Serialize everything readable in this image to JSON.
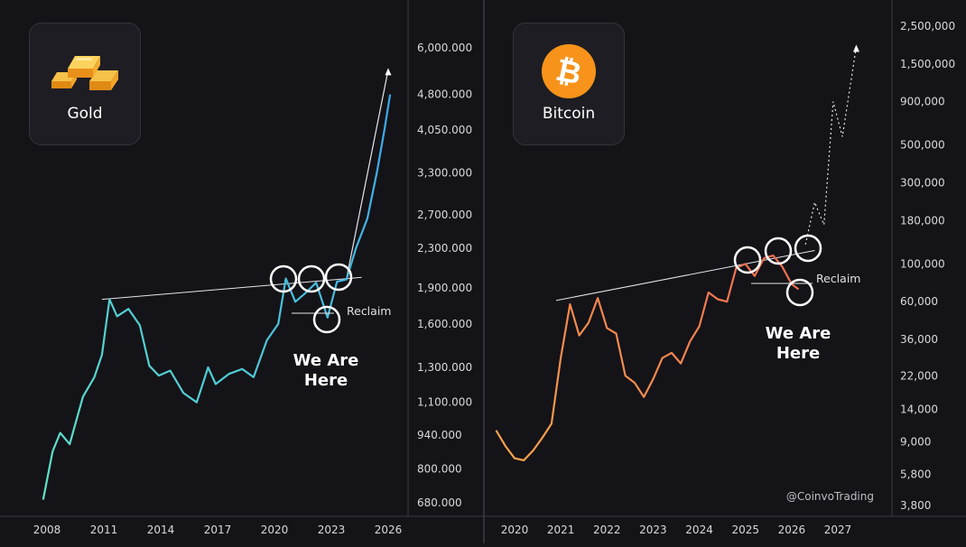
{
  "panels": {
    "gold": {
      "asset_label": "Gold",
      "icon": "gold-bars-icon",
      "line_color_start": "#5fe3c8",
      "line_color_end": "#3aa8e8",
      "annotation_reclaim": "Reclaim",
      "annotation_here_line1": "We Are",
      "annotation_here_line2": "Here"
    },
    "bitcoin": {
      "asset_label": "Bitcoin",
      "icon": "bitcoin-logo-icon",
      "brand_color": "#f7931a",
      "line_color_start": "#f5a54a",
      "line_color_end": "#ef6b52",
      "annotation_reclaim": "Reclaim",
      "annotation_here_line1": "We Are",
      "annotation_here_line2": "Here"
    }
  },
  "credit": "@CoinvoTrading",
  "chart_data": [
    {
      "type": "line",
      "title": "",
      "xlabel": "",
      "ylabel": "",
      "yscale": "log",
      "x_ticks": [
        "2008",
        "2011",
        "2014",
        "2017",
        "2020",
        "2023",
        "2026"
      ],
      "y_ticks": [
        "6,000.000",
        "4,800.000",
        "4,050.000",
        "3,300.000",
        "2,700.000",
        "2,300.000",
        "1,900.000",
        "1,600.000",
        "1,300.000",
        "1,100.000",
        "940.000",
        "800.000",
        "680.000"
      ],
      "series": [
        {
          "x": [
            2007.8,
            2008.3,
            2008.7,
            2009.2,
            2009.9,
            2010.5,
            2010.9,
            2011.3,
            2011.7,
            2012.3,
            2012.9,
            2013.4,
            2013.9,
            2014.5,
            2015.2,
            2015.9,
            2016.5,
            2016.9,
            2017.6,
            2018.3,
            2018.9,
            2019.6,
            2020.2,
            2020.6,
            2021.1,
            2021.6,
            2022.2,
            2022.8,
            2023.3,
            2023.8,
            2024.3,
            2024.9,
            2025.4,
            2025.8,
            2026.1
          ],
          "y": [
            690,
            870,
            950,
            900,
            1130,
            1240,
            1380,
            1800,
            1660,
            1720,
            1590,
            1310,
            1250,
            1280,
            1150,
            1100,
            1300,
            1200,
            1260,
            1290,
            1240,
            1480,
            1600,
            1990,
            1780,
            1850,
            1950,
            1650,
            1960,
            1980,
            2300,
            2650,
            3300,
            4050,
            4800
          ]
        }
      ],
      "projection": {
        "x": [
          2023.8,
          2026.0
        ],
        "y": [
          1990,
          5400
        ]
      },
      "resistance_line": {
        "x": [
          2010.9,
          2024.6
        ],
        "y": [
          1800,
          2000
        ]
      },
      "markers": [
        "resistance",
        "resistance",
        "resistance",
        "we are here"
      ]
    },
    {
      "type": "line",
      "title": "",
      "xlabel": "",
      "ylabel": "",
      "yscale": "log",
      "x_ticks": [
        "2020",
        "2021",
        "2022",
        "2023",
        "2024",
        "2025",
        "2026",
        "2027"
      ],
      "y_ticks": [
        "2,500,000",
        "1,500,000",
        "900,000",
        "500,000",
        "300,000",
        "180,000",
        "100,000",
        "60,000",
        "36,000",
        "22,000",
        "14,000",
        "9,000",
        "5,800",
        "3,800"
      ],
      "series": [
        {
          "x": [
            2019.6,
            2019.8,
            2020.0,
            2020.2,
            2020.4,
            2020.6,
            2020.8,
            2021.0,
            2021.2,
            2021.4,
            2021.6,
            2021.8,
            2022.0,
            2022.2,
            2022.4,
            2022.6,
            2022.8,
            2023.0,
            2023.2,
            2023.4,
            2023.6,
            2023.8,
            2024.0,
            2024.2,
            2024.4,
            2024.6,
            2024.8,
            2025.0,
            2025.2,
            2025.4,
            2025.6,
            2025.8,
            2026.0,
            2026.15
          ],
          "y": [
            10500,
            8500,
            7200,
            7000,
            8000,
            9500,
            11500,
            28000,
            58000,
            38000,
            45000,
            63000,
            42000,
            39000,
            22000,
            20000,
            16500,
            21000,
            28000,
            30000,
            26000,
            35000,
            43000,
            68000,
            62000,
            60000,
            95000,
            100000,
            85000,
            108000,
            112000,
            96000,
            76000,
            71000
          ]
        }
      ],
      "projection": {
        "x": [
          2026.3,
          2026.5,
          2026.7,
          2026.9,
          2027.1,
          2027.4
        ],
        "y": [
          130000,
          230000,
          170000,
          900000,
          560000,
          1900000
        ]
      },
      "resistance_line": {
        "x": [
          2020.9,
          2026.5
        ],
        "y": [
          61000,
          120000
        ]
      },
      "markers": [
        "resistance",
        "resistance",
        "resistance",
        "we are here"
      ]
    }
  ]
}
